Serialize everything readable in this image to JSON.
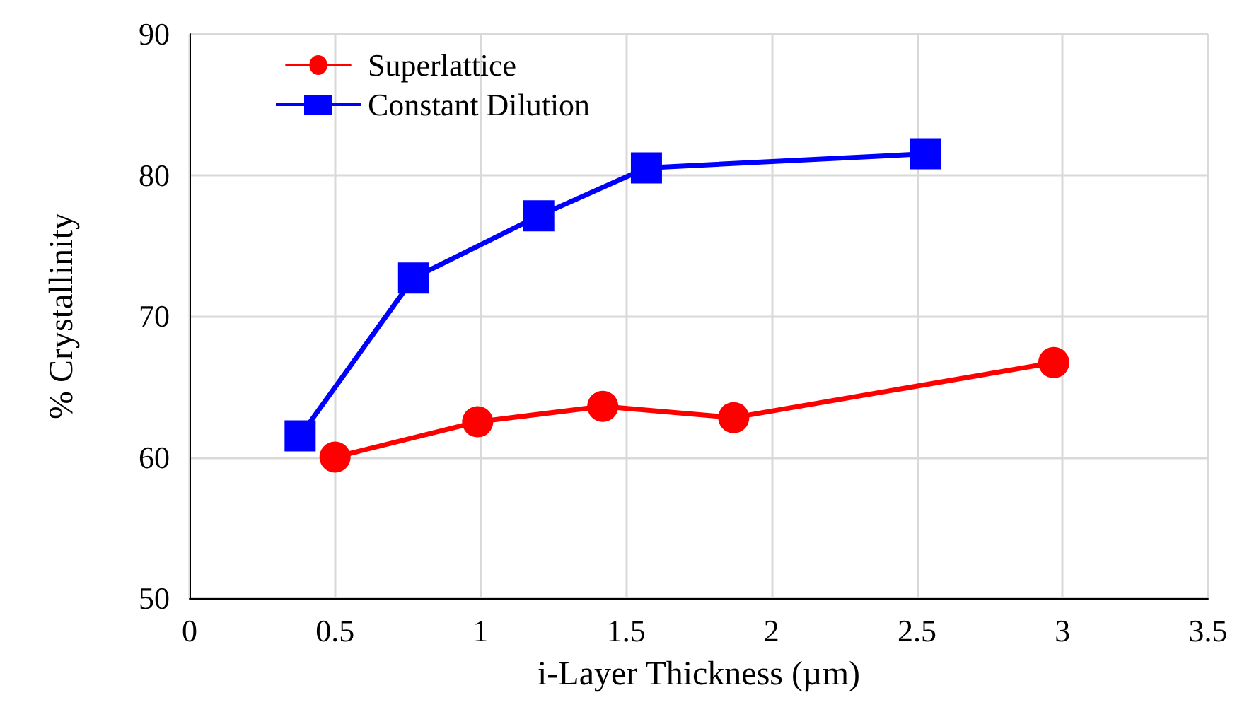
{
  "chart_data": {
    "type": "line",
    "xlabel": "i-Layer Thickness (µm)",
    "ylabel": "% Crystallinity",
    "xlim": [
      0,
      3.5
    ],
    "xticks": [
      0,
      0.5,
      1,
      1.5,
      2,
      2.5,
      3,
      3.5
    ],
    "ylim": [
      50,
      90
    ],
    "yticks": [
      50,
      60,
      70,
      80,
      90
    ],
    "grid": true,
    "legend": "top left",
    "line_style": "solid",
    "series": [
      {
        "name": "Superlattice",
        "color": "#ff0000",
        "marker": "circle",
        "x": [
          0.5,
          0.99,
          1.42,
          1.87,
          2.97
        ],
        "values": [
          60.0,
          62.5,
          63.6,
          62.8,
          66.7
        ]
      },
      {
        "name": "Constant Dilution",
        "color": "#0000ff",
        "marker": "square",
        "x": [
          0.38,
          0.77,
          1.2,
          1.57,
          2.53
        ],
        "values": [
          61.5,
          72.7,
          77.1,
          80.5,
          81.5
        ]
      }
    ]
  }
}
